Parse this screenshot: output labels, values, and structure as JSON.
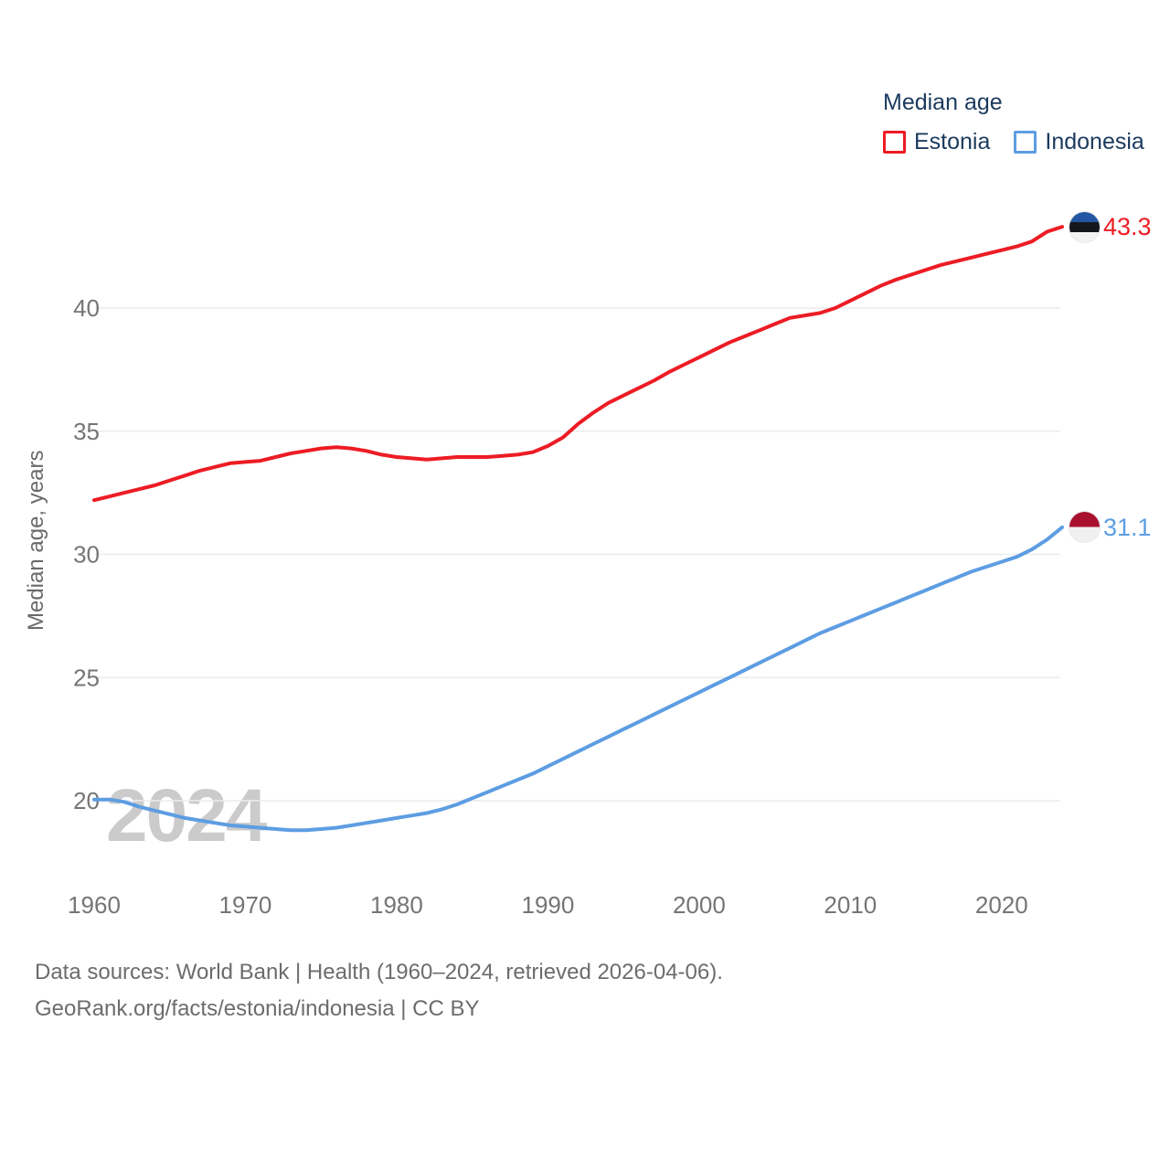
{
  "legend": {
    "title": "Median age",
    "items": [
      {
        "label": "Estonia"
      },
      {
        "label": "Indonesia"
      }
    ]
  },
  "watermark": "2024",
  "footer": {
    "source_line": "Data sources: World Bank | Health (1960–2024, retrieved 2026-04-06).",
    "attribution_line": "GeoRank.org/facts/estonia/indonesia | CC BY"
  },
  "colors": {
    "estonia_line": "#ed1c24",
    "indonesia_line": "#5d9de2",
    "legend_text": "#1b3a5e",
    "tick_text": "#757575",
    "grid_line": "#ececec",
    "flag_estonia": [
      "#2456a4",
      "#14181c",
      "#f2f2f2"
    ],
    "flag_indonesia": [
      "#a8102e",
      "#f0f0f0"
    ]
  },
  "chart_data": {
    "type": "line",
    "title": "Median age",
    "xlabel": "",
    "ylabel": "Median age, years",
    "xlim": [
      1960,
      2024
    ],
    "ylim": [
      18.3,
      44.5
    ],
    "x_ticks": [
      1960,
      1970,
      1980,
      1990,
      2000,
      2010,
      2020
    ],
    "y_ticks": [
      20,
      25,
      30,
      35,
      40
    ],
    "grid": "horizontal",
    "legend_position": "top-right",
    "x_start_year": 1960,
    "x_step_years": 1,
    "series": [
      {
        "name": "Estonia",
        "color": "#ed1c24",
        "end_label": "43.3",
        "end_value": 43.3,
        "flag": "estonia",
        "values": [
          32.2,
          32.35,
          32.5,
          32.65,
          32.8,
          33.0,
          33.2,
          33.4,
          33.55,
          33.7,
          33.75,
          33.8,
          33.95,
          34.1,
          34.2,
          34.3,
          34.35,
          34.3,
          34.2,
          34.05,
          33.95,
          33.9,
          33.85,
          33.9,
          33.95,
          33.95,
          33.95,
          34.0,
          34.05,
          34.15,
          34.4,
          34.75,
          35.3,
          35.75,
          36.15,
          36.45,
          36.75,
          37.05,
          37.4,
          37.7,
          38.0,
          38.3,
          38.6,
          38.85,
          39.1,
          39.35,
          39.6,
          39.7,
          39.8,
          40.0,
          40.3,
          40.6,
          40.9,
          41.15,
          41.35,
          41.55,
          41.75,
          41.9,
          42.05,
          42.2,
          42.35,
          42.5,
          42.7,
          43.1,
          43.3
        ]
      },
      {
        "name": "Indonesia",
        "color": "#5d9de2",
        "end_label": "31.1",
        "end_value": 31.1,
        "flag": "indonesia",
        "values": [
          20.05,
          20.05,
          19.95,
          19.75,
          19.6,
          19.45,
          19.3,
          19.2,
          19.1,
          19.0,
          18.95,
          18.9,
          18.85,
          18.8,
          18.8,
          18.85,
          18.9,
          19.0,
          19.1,
          19.2,
          19.3,
          19.4,
          19.5,
          19.65,
          19.85,
          20.1,
          20.35,
          20.6,
          20.85,
          21.1,
          21.4,
          21.7,
          22.0,
          22.3,
          22.6,
          22.9,
          23.2,
          23.5,
          23.8,
          24.1,
          24.4,
          24.7,
          25.0,
          25.3,
          25.6,
          25.9,
          26.2,
          26.5,
          26.8,
          27.05,
          27.3,
          27.55,
          27.8,
          28.05,
          28.3,
          28.55,
          28.8,
          29.05,
          29.3,
          29.5,
          29.7,
          29.9,
          30.2,
          30.6,
          31.1
        ]
      }
    ]
  }
}
